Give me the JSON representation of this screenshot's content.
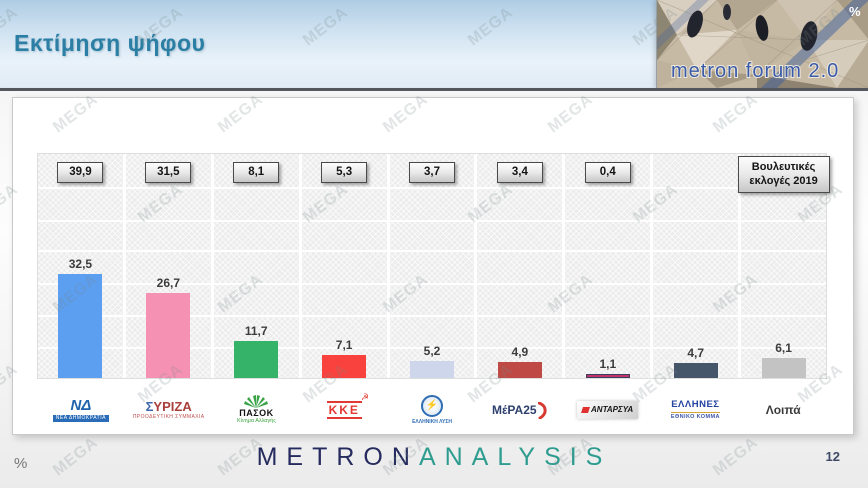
{
  "header": {
    "title": "Εκτίμηση ψήφου",
    "logo_text": "metron forum 2.0",
    "logo_percent": "%"
  },
  "watermark": {
    "text": "MEGA"
  },
  "icons": {
    "hammer_sickle": "☭",
    "lightning": "⚡"
  },
  "legend_box": "Βουλευτικές εκλογές 2019",
  "columns": [
    {
      "party": "ΝΔ",
      "box": "39,9",
      "bar_label": "32,5",
      "value": 32.5,
      "color": "#5C9EF0",
      "logo_main": "ΝΔ",
      "logo_sub": "ΝΕΑ ΔΗΜΟΚΡΑΤΙΑ"
    },
    {
      "party": "ΣΥΡΙΖΑ",
      "box": "31,5",
      "bar_label": "26,7",
      "value": 26.7,
      "color": "#F592B4",
      "logo_main_prefix": "Σ",
      "logo_main_rest": "ΥΡΙΖΑ",
      "logo_sub": "ΠΡΟΟΔΕΥΤΙΚΗ ΣΥΜΜΑΧΙΑ"
    },
    {
      "party": "ΠΑΣΟΚ",
      "box": "8,1",
      "bar_label": "11,7",
      "value": 11.7,
      "color": "#35B368",
      "logo_main": "ΠΑΣΟΚ",
      "logo_sub": "Κίνημα Αλλαγής"
    },
    {
      "party": "ΚΚΕ",
      "box": "5,3",
      "bar_label": "7,1",
      "value": 7.1,
      "color": "#F9423D",
      "logo_main": "ΚΚΕ"
    },
    {
      "party": "ΕΛΛΗΝΙΚΗ ΛΥΣΗ",
      "box": "3,7",
      "bar_label": "5,2",
      "value": 5.2,
      "color": "#CED6EB",
      "logo_main": "ΕΛΛΗΝΙΚΗ ΛΥΣΗ"
    },
    {
      "party": "ΜέΡΑ25",
      "box": "3,4",
      "bar_label": "4,9",
      "value": 4.9,
      "color": "#BF4945",
      "logo_main": "ΜέΡΑ25"
    },
    {
      "party": "ΑΝΤΑΡΣΥΑ",
      "box": "0,4",
      "bar_label": "1,1",
      "value": 1.1,
      "color": "#C23467",
      "border_color": "#3A4060",
      "logo_main": "ΑΝΤΑΡΣΥΑ"
    },
    {
      "party": "ΕΛΛΗΝΕΣ ΕΘΝΙΚΟ ΚΟΜΜΑ",
      "bar_label": "4,7",
      "value": 4.7,
      "color": "#45566B",
      "logo_main": "ΕΛΛΗΝΕΣ",
      "logo_sub": "ΕΘΝΙΚΟ ΚΟΜΜΑ"
    },
    {
      "party": "Λοιπά",
      "bar_label": "6,1",
      "value": 6.1,
      "color": "#C3C3C3",
      "logo_main": "Λοιπά"
    }
  ],
  "chart_data": {
    "type": "bar",
    "title": "Εκτίμηση ψήφου",
    "unit": "%",
    "categories": [
      "ΝΔ",
      "ΣΥΡΙΖΑ",
      "ΠΑΣΟΚ",
      "ΚΚΕ",
      "ΕΛΛΗΝΙΚΗ ΛΥΣΗ",
      "ΜέΡΑ25",
      "ΑΝΤΑΡΣΥΑ",
      "ΕΛΛΗΝΕΣ ΕΘΝΙΚΟ ΚΟΜΜΑ",
      "Λοιπά"
    ],
    "series": [
      {
        "name": "Εκτίμηση ψήφου",
        "values": [
          32.5,
          26.7,
          11.7,
          7.1,
          5.2,
          4.9,
          1.1,
          4.7,
          6.1
        ]
      },
      {
        "name": "Βουλευτικές εκλογές 2019",
        "values": [
          39.9,
          31.5,
          8.1,
          5.3,
          3.7,
          3.4,
          0.4,
          null,
          null
        ]
      }
    ],
    "ylim": [
      0,
      70
    ],
    "grid": true,
    "legend_position": "top-right-box"
  },
  "footer": {
    "brand_part1": "METRON",
    "brand_part2": "ANALYSIS",
    "page_number": "12",
    "percent_label": "%"
  }
}
